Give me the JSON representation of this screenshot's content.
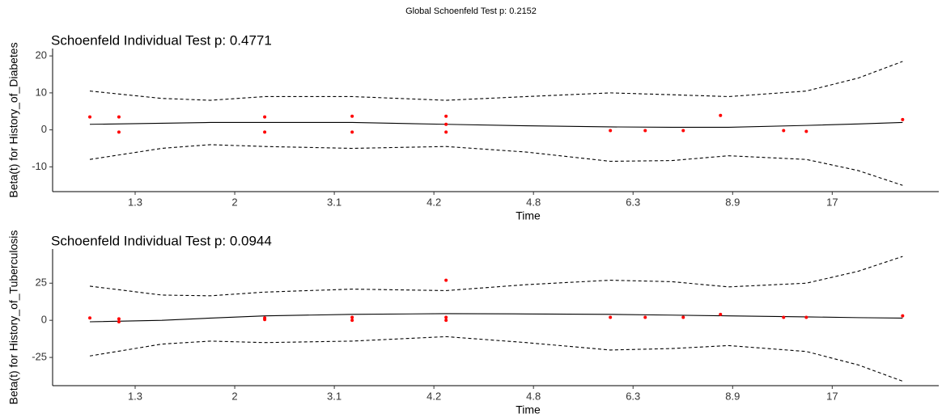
{
  "title": "Global Schoenfeld Test p: 0.2152",
  "chart_data": [
    {
      "type": "scatter",
      "title": "Schoenfeld Individual Test p: 0.4771",
      "x_label": "Time",
      "y_label": "Beta(t) for History_of_Diabetes",
      "xlim": [
        0.171,
        9.07
      ],
      "ylim": [
        -16.7,
        22
      ],
      "xticks": [
        {
          "value": 1,
          "label": "1.3"
        },
        {
          "value": 2,
          "label": "2"
        },
        {
          "value": 3,
          "label": "3.1"
        },
        {
          "value": 4,
          "label": "4.2"
        },
        {
          "value": 5,
          "label": "4.8"
        },
        {
          "value": 6,
          "label": "6.3"
        },
        {
          "value": 7,
          "label": "8.9"
        },
        {
          "value": 8,
          "label": "17"
        }
      ],
      "yticks": [
        -10,
        0,
        10,
        20
      ],
      "points": {
        "color": "#ff0000",
        "x": [
          0.545,
          0.837,
          0.837,
          2.301,
          2.301,
          3.179,
          3.179,
          4.122,
          4.122,
          4.122,
          5.772,
          6.122,
          6.504,
          6.878,
          7.512,
          7.74,
          8.707
        ],
        "values": [
          3.5,
          3.5,
          -0.6,
          3.5,
          -0.6,
          3.7,
          -0.6,
          3.7,
          1.5,
          -0.6,
          -0.2,
          -0.2,
          -0.2,
          3.9,
          -0.2,
          -0.4,
          2.8
        ]
      },
      "fit": {
        "color": "#000000",
        "x": [
          0.545,
          1.268,
          1.756,
          2.301,
          3.179,
          4.122,
          4.927,
          5.772,
          6.39,
          6.959,
          7.74,
          8.26,
          8.707
        ],
        "values": [
          1.5,
          1.8,
          2,
          2,
          2,
          1.5,
          1.1,
          0.8,
          0.7,
          0.7,
          1.2,
          1.6,
          2
        ]
      },
      "upper": {
        "color": "#000000",
        "x": [
          0.545,
          1.268,
          1.756,
          2.301,
          3.179,
          4.122,
          4.927,
          5.772,
          6.39,
          6.959,
          7.74,
          8.26,
          8.707
        ],
        "values": [
          10.5,
          8.5,
          8,
          9,
          9,
          8,
          9,
          10,
          9.5,
          9,
          10.5,
          14,
          18.5
        ]
      },
      "lower": {
        "color": "#000000",
        "x": [
          0.545,
          1.268,
          1.756,
          2.301,
          3.179,
          4.122,
          4.927,
          5.772,
          6.39,
          6.959,
          7.74,
          8.26,
          8.707
        ],
        "values": [
          -8,
          -5,
          -4,
          -4.5,
          -5,
          -4.5,
          -6,
          -8.5,
          -8.3,
          -7,
          -8,
          -11,
          -15
        ]
      }
    },
    {
      "type": "scatter",
      "title": "Schoenfeld Individual Test p: 0.0944",
      "x_label": "Time",
      "y_label": "Beta(t) for History_of_Tuberculosis",
      "xlim": [
        0.171,
        9.07
      ],
      "ylim": [
        -44,
        48
      ],
      "xticks": [
        {
          "value": 1,
          "label": "1.3"
        },
        {
          "value": 2,
          "label": "2"
        },
        {
          "value": 3,
          "label": "3.1"
        },
        {
          "value": 4,
          "label": "4.2"
        },
        {
          "value": 5,
          "label": "4.8"
        },
        {
          "value": 6,
          "label": "6.3"
        },
        {
          "value": 7,
          "label": "8.9"
        },
        {
          "value": 8,
          "label": "17"
        }
      ],
      "yticks": [
        -25,
        0,
        25
      ],
      "points": {
        "color": "#ff0000",
        "x": [
          0.545,
          0.837,
          0.837,
          2.301,
          2.301,
          3.179,
          3.179,
          4.122,
          4.122,
          4.122,
          5.772,
          6.122,
          6.504,
          6.878,
          7.512,
          7.74,
          8.707
        ],
        "values": [
          1.6,
          1,
          -1,
          1.6,
          0.5,
          2,
          0,
          27,
          2,
          0,
          2,
          2,
          2,
          4,
          2,
          2,
          3
        ]
      },
      "fit": {
        "color": "#000000",
        "x": [
          0.545,
          1.268,
          1.756,
          2.301,
          3.179,
          4.122,
          4.927,
          5.772,
          6.39,
          6.959,
          7.74,
          8.26,
          8.707
        ],
        "values": [
          -1,
          0,
          1.5,
          3,
          4,
          4.5,
          4.3,
          4,
          3.5,
          3,
          2.3,
          1.8,
          1.5
        ]
      },
      "upper": {
        "color": "#000000",
        "x": [
          0.545,
          1.268,
          1.756,
          2.301,
          3.179,
          4.122,
          4.927,
          5.772,
          6.39,
          6.959,
          7.74,
          8.26,
          8.707
        ],
        "values": [
          23,
          17,
          16.5,
          19,
          21,
          20,
          24,
          27,
          26,
          22.5,
          25,
          33,
          43
        ]
      },
      "lower": {
        "color": "#000000",
        "x": [
          0.545,
          1.268,
          1.756,
          2.301,
          3.179,
          4.122,
          4.927,
          5.772,
          6.39,
          6.959,
          7.74,
          8.26,
          8.707
        ],
        "values": [
          -24,
          -16,
          -14,
          -15,
          -14,
          -11,
          -15,
          -20,
          -19,
          -17,
          -21,
          -30,
          -41
        ]
      }
    }
  ]
}
